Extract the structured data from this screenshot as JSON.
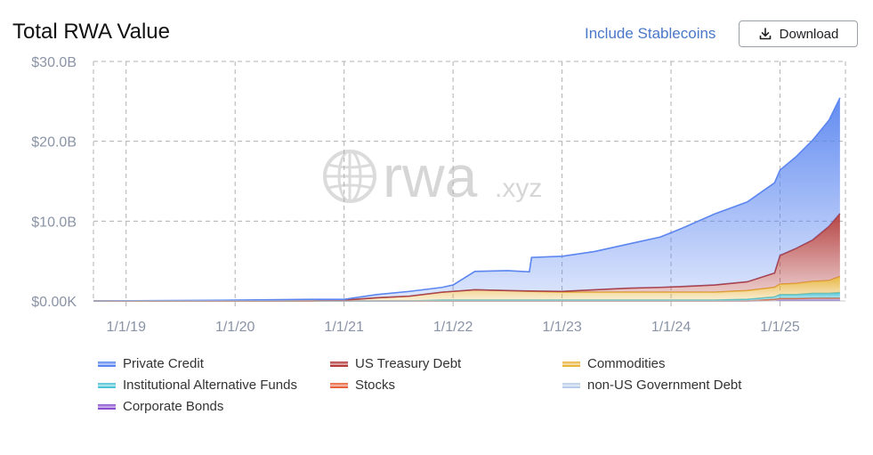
{
  "header": {
    "title": "Total RWA Value",
    "stablecoin_toggle": "Include Stablecoins",
    "download_label": "Download"
  },
  "watermark": {
    "brand": "rwa",
    "suffix": ".xyz"
  },
  "colors": {
    "Private Credit": "#5b86f0",
    "US Treasury Debt": "#b23a3a",
    "Commodities": "#e8b43c",
    "Institutional Alternative Funds": "#4fc3d6",
    "Stocks": "#e8643c",
    "non-US Government Debt": "#b8cce8",
    "Corporate Bonds": "#8a4fd0",
    "grid": "#b0b0b0",
    "axis_text": "#8a94a6",
    "link": "#4a78c8"
  },
  "chart_data": {
    "type": "area",
    "stacked": true,
    "title": "Total RWA Value",
    "y_ticks": [
      "$0.00K",
      "$10.0B",
      "$20.0B",
      "$30.0B"
    ],
    "ylim": [
      0,
      30
    ],
    "y_unit": "B USD",
    "x_ticks": [
      "1/1/19",
      "1/1/20",
      "1/1/21",
      "1/1/22",
      "1/1/23",
      "1/1/24",
      "1/1/25"
    ],
    "x_range": [
      2018.7,
      2025.6
    ],
    "grid": true,
    "legend_position": "bottom",
    "x": [
      2018.7,
      2020.0,
      2020.7,
      2021.0,
      2021.3,
      2021.6,
      2021.9,
      2022.0,
      2022.2,
      2022.5,
      2022.7,
      2022.72,
      2023.0,
      2023.3,
      2023.6,
      2023.9,
      2024.1,
      2024.4,
      2024.7,
      2024.95,
      2025.0,
      2025.15,
      2025.3,
      2025.45,
      2025.55
    ],
    "series": [
      {
        "name": "Corporate Bonds",
        "values": [
          0,
          0,
          0,
          0,
          0,
          0,
          0,
          0,
          0,
          0,
          0,
          0,
          0,
          0,
          0,
          0,
          0,
          0,
          0,
          0.05,
          0.1,
          0.1,
          0.1,
          0.1,
          0.1
        ]
      },
      {
        "name": "non-US Government Debt",
        "values": [
          0,
          0,
          0,
          0,
          0,
          0,
          0,
          0,
          0,
          0,
          0,
          0,
          0,
          0,
          0,
          0,
          0,
          0,
          0,
          0.1,
          0.15,
          0.15,
          0.2,
          0.2,
          0.2
        ]
      },
      {
        "name": "Stocks",
        "values": [
          0,
          0,
          0,
          0,
          0,
          0,
          0,
          0,
          0,
          0,
          0,
          0,
          0,
          0,
          0,
          0,
          0,
          0,
          0,
          0.05,
          0.05,
          0.05,
          0.05,
          0.05,
          0.05
        ]
      },
      {
        "name": "Institutional Alternative Funds",
        "values": [
          0,
          0,
          0,
          0,
          0,
          0,
          0.1,
          0.1,
          0.1,
          0.1,
          0.1,
          0.1,
          0.1,
          0.1,
          0.1,
          0.1,
          0.1,
          0.1,
          0.2,
          0.3,
          0.5,
          0.5,
          0.6,
          0.6,
          0.7
        ]
      },
      {
        "name": "Commodities",
        "values": [
          0,
          0,
          0,
          0.1,
          0.4,
          0.6,
          1.0,
          1.1,
          1.3,
          1.2,
          1.1,
          1.1,
          1.0,
          1.0,
          1.0,
          1.0,
          1.0,
          1.0,
          1.1,
          1.2,
          1.3,
          1.4,
          1.5,
          1.6,
          2.0
        ]
      },
      {
        "name": "US Treasury Debt",
        "values": [
          0,
          0,
          0,
          0,
          0,
          0,
          0,
          0,
          0,
          0,
          0.05,
          0.05,
          0.1,
          0.3,
          0.5,
          0.6,
          0.7,
          0.9,
          1.1,
          1.8,
          3.6,
          4.4,
          5.2,
          6.8,
          7.9
        ]
      },
      {
        "name": "Private Credit",
        "values": [
          0,
          0.1,
          0.2,
          0.1,
          0.4,
          0.6,
          0.6,
          0.8,
          2.3,
          2.5,
          2.4,
          4.2,
          4.4,
          4.8,
          5.5,
          6.3,
          7.3,
          8.9,
          10.0,
          11.3,
          10.7,
          11.5,
          12.5,
          13.3,
          14.5
        ]
      }
    ]
  },
  "legend": [
    {
      "label": "Private Credit",
      "col": 0,
      "row": 0
    },
    {
      "label": "US Treasury Debt",
      "col": 1,
      "row": 0
    },
    {
      "label": "Commodities",
      "col": 2,
      "row": 0
    },
    {
      "label": "Institutional Alternative Funds",
      "col": 0,
      "row": 1
    },
    {
      "label": "Stocks",
      "col": 1,
      "row": 1
    },
    {
      "label": "non-US Government Debt",
      "col": 2,
      "row": 1
    },
    {
      "label": "Corporate Bonds",
      "col": 0,
      "row": 2
    }
  ]
}
